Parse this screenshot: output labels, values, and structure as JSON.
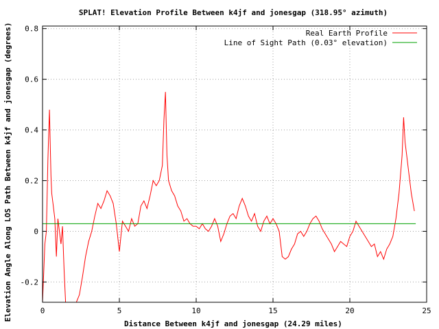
{
  "chart_data": {
    "type": "line",
    "title": "SPLAT! Elevation Profile Between k4jf and jonesgap (318.95° azimuth)",
    "xlabel": "Distance Between k4jf and jonesgap (24.29 miles)",
    "ylabel": "Elevation Angle Along LOS Path Between k4jf and jonesgap (degrees)",
    "xlim": [
      0,
      25
    ],
    "ylim": [
      -0.28,
      0.81
    ],
    "x_ticks": [
      0,
      5,
      10,
      15,
      20,
      25
    ],
    "y_ticks": [
      -0.2,
      0,
      0.2,
      0.4,
      0.6,
      0.8
    ],
    "y_tick_labels": [
      "-0.2",
      "0",
      "0.2",
      "0.4",
      "0.6",
      "0.8"
    ],
    "grid": true,
    "legend_position": "top-right",
    "series": [
      {
        "name": "Real Earth Profile",
        "color": "#ff0000",
        "x": [
          0.0,
          0.15,
          0.25,
          0.35,
          0.45,
          0.5,
          0.55,
          0.6,
          0.7,
          0.8,
          0.9,
          1.0,
          1.1,
          1.2,
          1.3,
          1.4,
          1.5,
          1.6,
          1.7,
          1.8,
          1.9,
          2.0,
          2.2,
          2.4,
          2.6,
          2.8,
          3.0,
          3.2,
          3.4,
          3.6,
          3.8,
          4.0,
          4.2,
          4.4,
          4.6,
          4.8,
          5.0,
          5.2,
          5.4,
          5.6,
          5.8,
          6.0,
          6.2,
          6.4,
          6.6,
          6.8,
          7.0,
          7.2,
          7.4,
          7.6,
          7.8,
          7.9,
          8.0,
          8.1,
          8.2,
          8.4,
          8.6,
          8.8,
          9.0,
          9.2,
          9.4,
          9.6,
          9.8,
          10.0,
          10.2,
          10.4,
          10.6,
          10.8,
          11.0,
          11.2,
          11.4,
          11.6,
          11.8,
          12.0,
          12.2,
          12.4,
          12.6,
          12.8,
          13.0,
          13.2,
          13.4,
          13.6,
          13.8,
          14.0,
          14.2,
          14.4,
          14.6,
          14.8,
          15.0,
          15.2,
          15.4,
          15.6,
          15.8,
          16.0,
          16.2,
          16.4,
          16.6,
          16.8,
          17.0,
          17.2,
          17.4,
          17.6,
          17.8,
          18.0,
          18.2,
          18.4,
          18.6,
          18.8,
          19.0,
          19.2,
          19.4,
          19.6,
          19.8,
          20.0,
          20.2,
          20.4,
          20.6,
          20.8,
          21.0,
          21.2,
          21.4,
          21.6,
          21.8,
          22.0,
          22.2,
          22.4,
          22.6,
          22.8,
          23.0,
          23.2,
          23.4,
          23.5,
          23.6,
          23.7,
          23.8,
          24.0,
          24.2
        ],
        "y": [
          -0.28,
          -0.05,
          0.0,
          0.28,
          0.48,
          0.35,
          0.22,
          0.15,
          0.1,
          0.05,
          -0.1,
          0.05,
          0.0,
          -0.05,
          0.02,
          -0.15,
          -0.28,
          -0.28,
          -0.28,
          -0.28,
          -0.28,
          -0.28,
          -0.28,
          -0.25,
          -0.18,
          -0.1,
          -0.04,
          0.0,
          0.06,
          0.11,
          0.09,
          0.12,
          0.16,
          0.14,
          0.11,
          0.03,
          -0.08,
          0.04,
          0.02,
          0.0,
          0.05,
          0.02,
          0.03,
          0.1,
          0.12,
          0.09,
          0.14,
          0.2,
          0.18,
          0.2,
          0.26,
          0.44,
          0.55,
          0.3,
          0.2,
          0.16,
          0.14,
          0.1,
          0.08,
          0.04,
          0.05,
          0.03,
          0.02,
          0.02,
          0.01,
          0.03,
          0.01,
          0.0,
          0.02,
          0.05,
          0.02,
          -0.04,
          -0.01,
          0.03,
          0.06,
          0.07,
          0.05,
          0.1,
          0.13,
          0.1,
          0.06,
          0.04,
          0.07,
          0.02,
          0.0,
          0.04,
          0.06,
          0.03,
          0.05,
          0.03,
          0.0,
          -0.1,
          -0.11,
          -0.1,
          -0.07,
          -0.05,
          -0.01,
          0.0,
          -0.02,
          0.0,
          0.03,
          0.05,
          0.06,
          0.04,
          0.01,
          -0.01,
          -0.03,
          -0.05,
          -0.08,
          -0.06,
          -0.04,
          -0.05,
          -0.06,
          -0.02,
          0.0,
          0.04,
          0.02,
          0.0,
          -0.02,
          -0.04,
          -0.06,
          -0.05,
          -0.1,
          -0.08,
          -0.11,
          -0.07,
          -0.05,
          -0.02,
          0.05,
          0.15,
          0.3,
          0.45,
          0.35,
          0.3,
          0.25,
          0.15,
          0.08
        ]
      },
      {
        "name": "Line of Sight Path (0.03° elevation)",
        "color": "#00a000",
        "x": [
          0.0,
          24.29
        ],
        "y": [
          0.03,
          0.03
        ]
      }
    ]
  }
}
